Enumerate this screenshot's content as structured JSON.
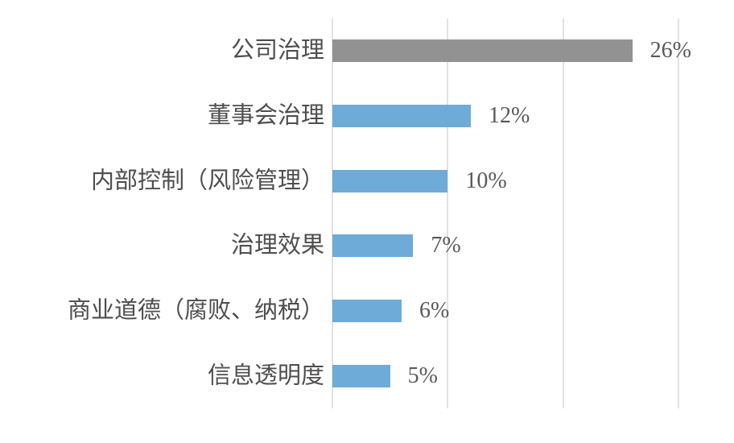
{
  "colors": {
    "background": "#ffffff",
    "gridline": "#e2e2e2",
    "category_text": "#4e4e4e",
    "value_text": "#595959",
    "bar_blue": "#6eabd8",
    "bar_gray": "#929292"
  },
  "chart_data": {
    "type": "bar",
    "orientation": "horizontal",
    "title": "",
    "xlabel": "",
    "ylabel": "",
    "xlim": [
      0,
      30
    ],
    "gridlines_pct": [
      0,
      10,
      20,
      30
    ],
    "grid": true,
    "legend": false,
    "categories": [
      "公司治理",
      "董事会治理",
      "内部控制（风险管理）",
      "治理效果",
      "商业道德（腐败、纳税）",
      "信息透明度"
    ],
    "values": [
      26,
      12,
      10,
      7,
      6,
      5
    ],
    "value_labels": [
      "26%",
      "12%",
      "10%",
      "7%",
      "6%",
      "5%"
    ],
    "bar_colors": [
      "#929292",
      "#6eabd8",
      "#6eabd8",
      "#6eabd8",
      "#6eabd8",
      "#6eabd8"
    ]
  }
}
